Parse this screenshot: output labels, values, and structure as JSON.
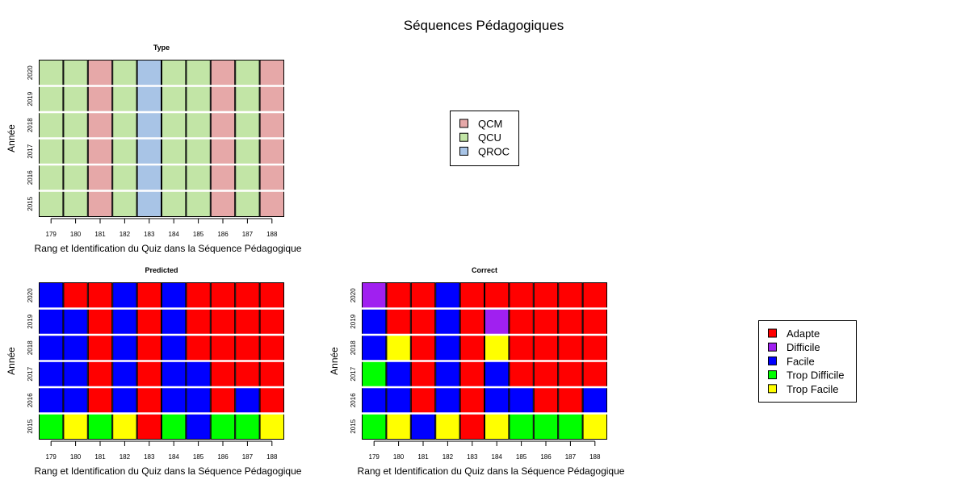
{
  "title": "Séquences Pédagogiques",
  "colors": {
    "QCM": "#E6A8A8",
    "QCU": "#C2E5A6",
    "QROC": "#A8C4E6",
    "Adapte": "#FF0000",
    "Difficile": "#A020F0",
    "Facile": "#0000FF",
    "Trop Difficile": "#00FF00",
    "Trop Facile": "#FFFF00"
  },
  "chart_data": [
    {
      "type": "heatmap",
      "title": "Type",
      "xlabel": "Rang et Identification du Quiz dans la Séquence Pédagogique",
      "ylabel": "Année",
      "x": [
        "179",
        "180",
        "181",
        "182",
        "183",
        "184",
        "185",
        "186",
        "187",
        "188"
      ],
      "y": [
        "2020",
        "2019",
        "2018",
        "2017",
        "2016",
        "2015"
      ],
      "values": [
        [
          "QCU",
          "QCU",
          "QCM",
          "QCU",
          "QROC",
          "QCU",
          "QCU",
          "QCM",
          "QCU",
          "QCM"
        ],
        [
          "QCU",
          "QCU",
          "QCM",
          "QCU",
          "QROC",
          "QCU",
          "QCU",
          "QCM",
          "QCU",
          "QCM"
        ],
        [
          "QCU",
          "QCU",
          "QCM",
          "QCU",
          "QROC",
          "QCU",
          "QCU",
          "QCM",
          "QCU",
          "QCM"
        ],
        [
          "QCU",
          "QCU",
          "QCM",
          "QCU",
          "QROC",
          "QCU",
          "QCU",
          "QCM",
          "QCU",
          "QCM"
        ],
        [
          "QCU",
          "QCU",
          "QCM",
          "QCU",
          "QROC",
          "QCU",
          "QCU",
          "QCM",
          "QCU",
          "QCM"
        ],
        [
          "QCU",
          "QCU",
          "QCM",
          "QCU",
          "QROC",
          "QCU",
          "QCU",
          "QCM",
          "QCU",
          "QCM"
        ]
      ]
    },
    {
      "type": "heatmap",
      "title": "Predicted",
      "xlabel": "Rang et Identification du Quiz dans la Séquence Pédagogique",
      "ylabel": "Année",
      "x": [
        "179",
        "180",
        "181",
        "182",
        "183",
        "184",
        "185",
        "186",
        "187",
        "188"
      ],
      "y": [
        "2020",
        "2019",
        "2018",
        "2017",
        "2016",
        "2015"
      ],
      "values": [
        [
          "Facile",
          "Adapte",
          "Adapte",
          "Facile",
          "Adapte",
          "Facile",
          "Adapte",
          "Adapte",
          "Adapte",
          "Adapte"
        ],
        [
          "Facile",
          "Facile",
          "Adapte",
          "Facile",
          "Adapte",
          "Facile",
          "Adapte",
          "Adapte",
          "Adapte",
          "Adapte"
        ],
        [
          "Facile",
          "Facile",
          "Adapte",
          "Facile",
          "Adapte",
          "Facile",
          "Adapte",
          "Adapte",
          "Adapte",
          "Adapte"
        ],
        [
          "Facile",
          "Facile",
          "Adapte",
          "Facile",
          "Adapte",
          "Facile",
          "Facile",
          "Adapte",
          "Adapte",
          "Adapte"
        ],
        [
          "Facile",
          "Facile",
          "Adapte",
          "Facile",
          "Adapte",
          "Facile",
          "Facile",
          "Adapte",
          "Facile",
          "Adapte"
        ],
        [
          "Trop Difficile",
          "Trop Facile",
          "Trop Difficile",
          "Trop Facile",
          "Adapte",
          "Trop Difficile",
          "Facile",
          "Trop Difficile",
          "Trop Difficile",
          "Trop Facile"
        ]
      ]
    },
    {
      "type": "heatmap",
      "title": "Correct",
      "xlabel": "Rang et Identification du Quiz dans la Séquence Pédagogique",
      "ylabel": "Année",
      "x": [
        "179",
        "180",
        "181",
        "182",
        "183",
        "184",
        "185",
        "186",
        "187",
        "188"
      ],
      "y": [
        "2020",
        "2019",
        "2018",
        "2017",
        "2016",
        "2015"
      ],
      "values": [
        [
          "Difficile",
          "Adapte",
          "Adapte",
          "Facile",
          "Adapte",
          "Adapte",
          "Adapte",
          "Adapte",
          "Adapte",
          "Adapte"
        ],
        [
          "Facile",
          "Adapte",
          "Adapte",
          "Facile",
          "Adapte",
          "Difficile",
          "Adapte",
          "Adapte",
          "Adapte",
          "Adapte"
        ],
        [
          "Facile",
          "Trop Facile",
          "Adapte",
          "Facile",
          "Adapte",
          "Trop Facile",
          "Adapte",
          "Adapte",
          "Adapte",
          "Adapte"
        ],
        [
          "Trop Difficile",
          "Facile",
          "Adapte",
          "Facile",
          "Adapte",
          "Facile",
          "Adapte",
          "Adapte",
          "Adapte",
          "Adapte"
        ],
        [
          "Facile",
          "Facile",
          "Adapte",
          "Facile",
          "Adapte",
          "Facile",
          "Facile",
          "Adapte",
          "Adapte",
          "Facile"
        ],
        [
          "Trop Difficile",
          "Trop Facile",
          "Facile",
          "Trop Facile",
          "Adapte",
          "Trop Facile",
          "Trop Difficile",
          "Trop Difficile",
          "Trop Difficile",
          "Trop Facile"
        ]
      ]
    }
  ],
  "legends": [
    {
      "entries": [
        "QCM",
        "QCU",
        "QROC"
      ]
    },
    {
      "entries": [
        "Adapte",
        "Difficile",
        "Facile",
        "Trop Difficile",
        "Trop Facile"
      ]
    }
  ]
}
